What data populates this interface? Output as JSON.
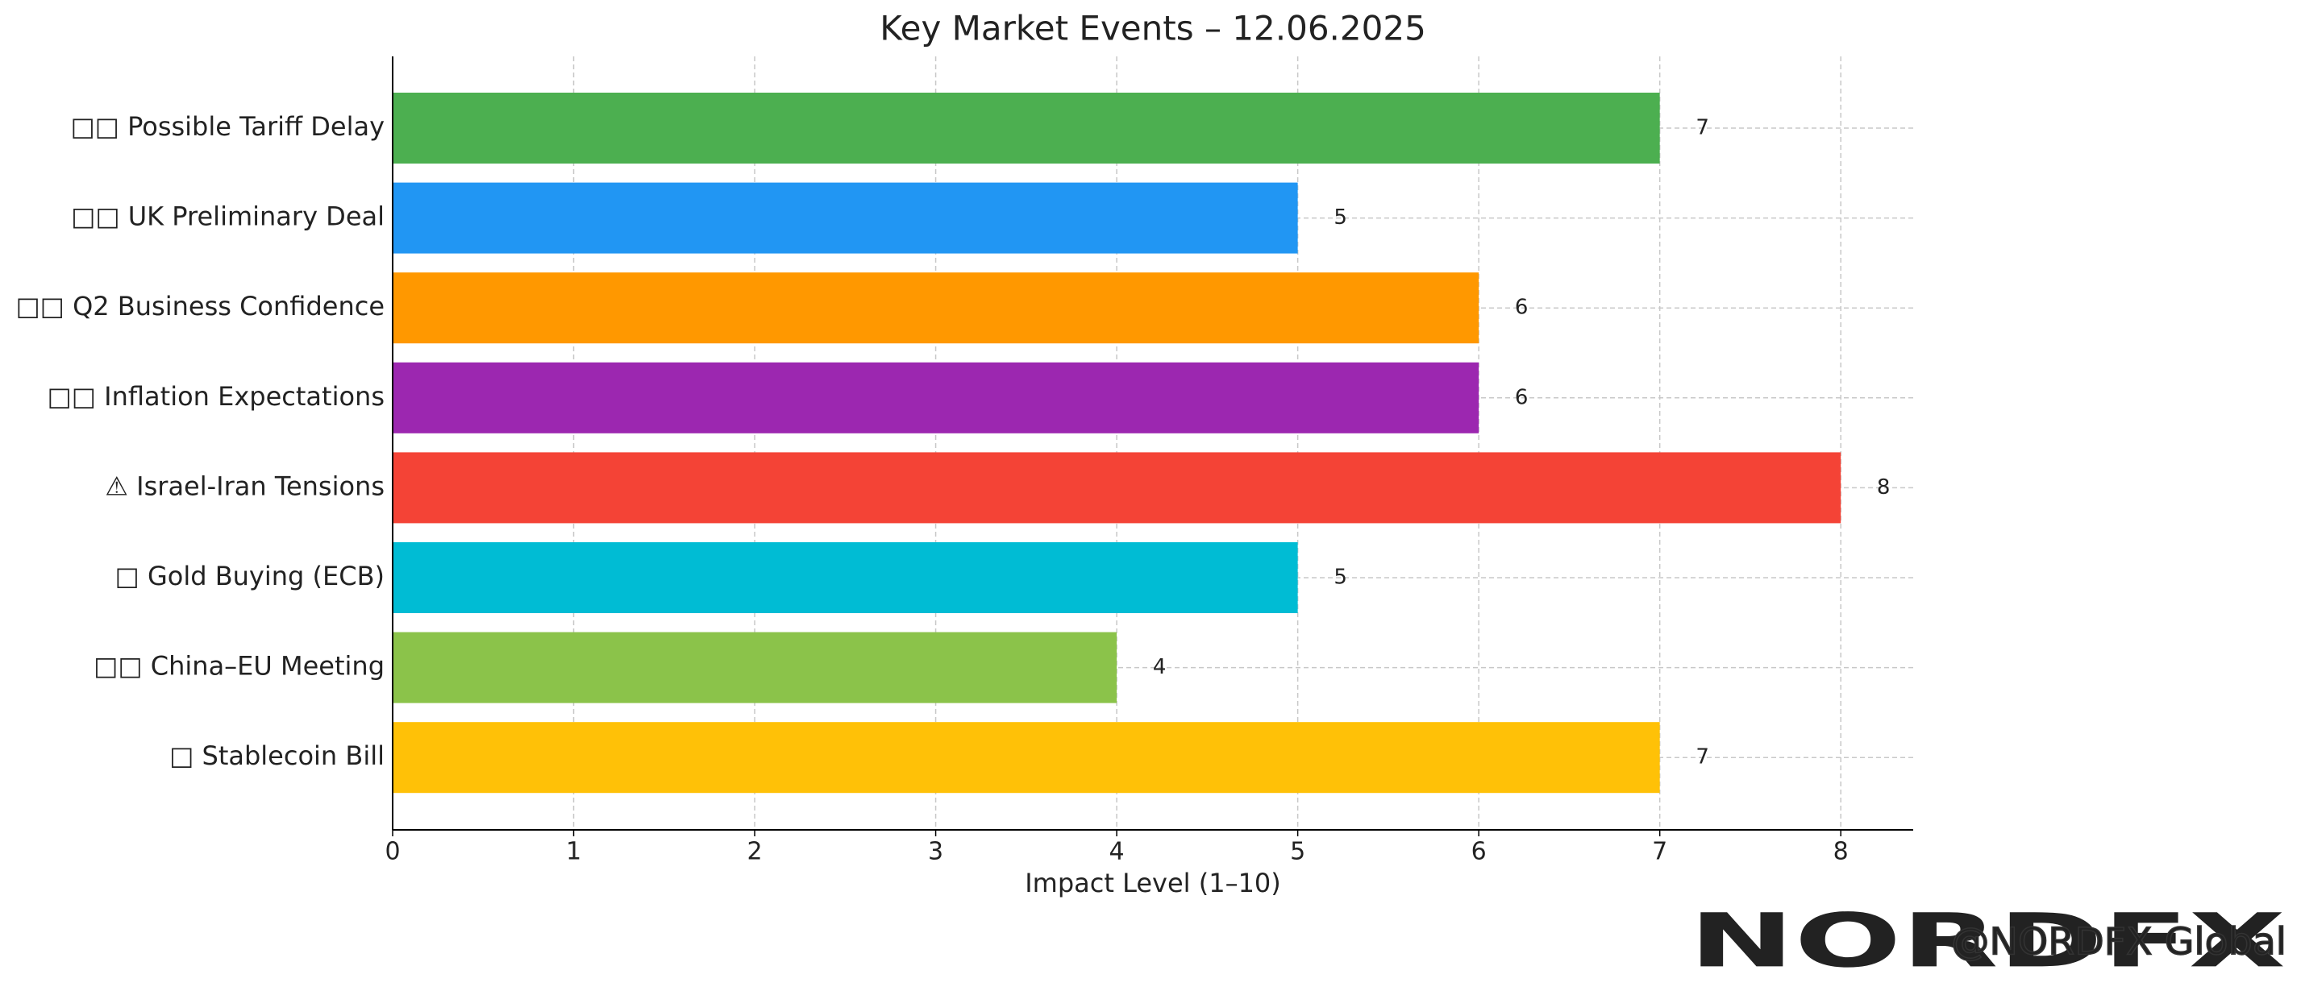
{
  "chart_data": {
    "type": "barh",
    "title": "Key Market Events – 12.06.2025",
    "xlabel": "Impact Level (1–10)",
    "categories": [
      "□□ Possible Tariff Delay",
      "□□ UK Preliminary Deal",
      "□□ Q2 Business Confidence",
      "□□ Inflation Expectations",
      "⚠ Israel-Iran Tensions",
      "□ Gold Buying (ECB)",
      "□□ China–EU Meeting",
      "□ Stablecoin Bill"
    ],
    "values": [
      7,
      5,
      6,
      6,
      8,
      5,
      4,
      7
    ],
    "colors": [
      "#4caf50",
      "#2196f3",
      "#ff9800",
      "#9c27b0",
      "#f44336",
      "#00bcd4",
      "#8bc34a",
      "#ffc107"
    ],
    "xlim": [
      0,
      8.4
    ],
    "xticks": [
      0,
      1,
      2,
      3,
      4,
      5,
      6,
      7,
      8
    ],
    "grid": true
  },
  "watermark": {
    "logo": "NORDFX",
    "handle": "@NORDFX Global"
  }
}
